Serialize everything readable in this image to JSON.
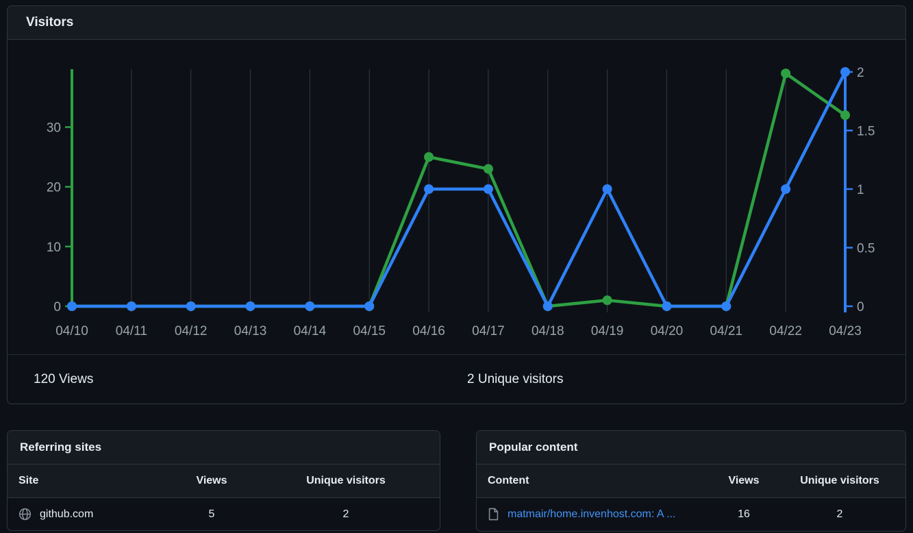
{
  "visitors_card": {
    "title": "Visitors",
    "summary": {
      "views": "120 Views",
      "unique": "2 Unique visitors"
    }
  },
  "chart_data": {
    "type": "line",
    "title": "Visitors",
    "x": [
      "04/10",
      "04/11",
      "04/12",
      "04/13",
      "04/14",
      "04/15",
      "04/16",
      "04/17",
      "04/18",
      "04/19",
      "04/20",
      "04/21",
      "04/22",
      "04/23"
    ],
    "series": [
      {
        "name": "Views",
        "axis": "left",
        "color": "#2ea043",
        "values": [
          0,
          0,
          0,
          0,
          0,
          0,
          25,
          23,
          0,
          1,
          0,
          0,
          39,
          32
        ]
      },
      {
        "name": "Unique visitors",
        "axis": "right",
        "color": "#2f81f7",
        "values": [
          0,
          0,
          0,
          0,
          0,
          0,
          1,
          1,
          0,
          1,
          0,
          0,
          1,
          2
        ]
      }
    ],
    "y_left": {
      "ticks": [
        0,
        10,
        20,
        30
      ],
      "max": 39.7,
      "color": "#2ea043"
    },
    "y_right": {
      "ticks": [
        0,
        0.5,
        1,
        1.5,
        2
      ],
      "max": 2,
      "color": "#2f81f7"
    },
    "grid": "vertical-only",
    "legend": "none",
    "totals": {
      "views": 120,
      "unique_visitors": 2
    }
  },
  "referring_sites": {
    "title": "Referring sites",
    "columns": [
      "Site",
      "Views",
      "Unique visitors"
    ],
    "rows": [
      {
        "site": "github.com",
        "views": "5",
        "unique": "2"
      }
    ]
  },
  "popular_content": {
    "title": "Popular content",
    "columns": [
      "Content",
      "Views",
      "Unique visitors"
    ],
    "rows": [
      {
        "content": "matmair/home.invenhost.com: A ...",
        "views": "16",
        "unique": "2"
      }
    ]
  },
  "colors": {
    "background": "#0d1117",
    "card_border": "#30363d",
    "header_bg": "#161b22",
    "text_primary": "#e6edf3",
    "text_muted": "#9aa3ad",
    "gridline": "#343a42",
    "views_green": "#2ea043",
    "unique_blue": "#2f81f7",
    "link_blue": "#4493f8"
  }
}
